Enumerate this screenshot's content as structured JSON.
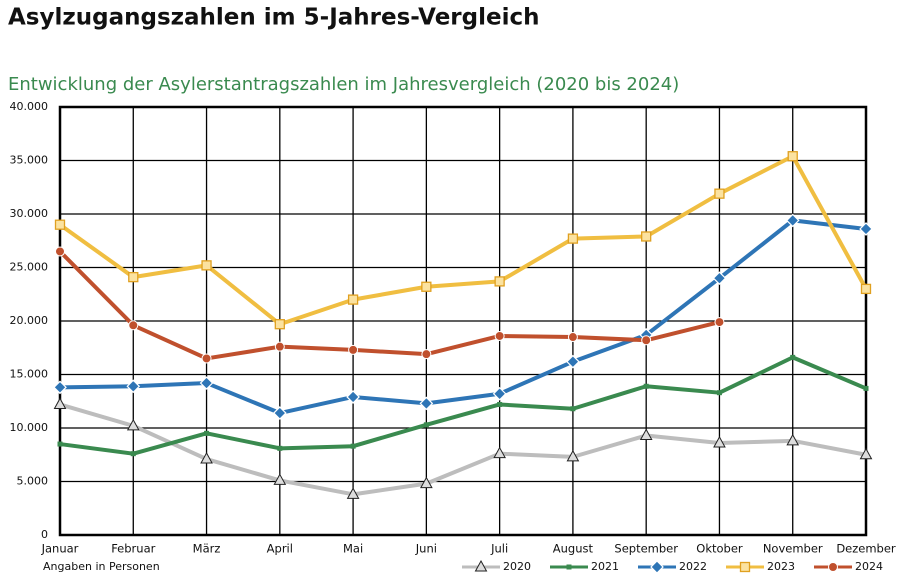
{
  "chart_data": {
    "type": "line",
    "title": "Asylzugangszahlen im 5-Jahres-Vergleich",
    "subtitle": "Entwicklung der Asylerstantragszahlen im Jahresvergleich (2020 bis 2024)",
    "annotation": "Angaben in Personen",
    "categories": [
      "Januar",
      "Februar",
      "März",
      "April",
      "Mai",
      "Juni",
      "Juli",
      "August",
      "September",
      "Oktober",
      "November",
      "Dezember"
    ],
    "series": [
      {
        "name": "2020",
        "color": "#bdbdbd",
        "marker": "triangle",
        "values": [
          12200,
          10200,
          7100,
          5100,
          3800,
          4800,
          7600,
          7300,
          9300,
          8600,
          8800,
          7500
        ]
      },
      {
        "name": "2021",
        "color": "#3a8a4f",
        "marker": "dot",
        "values": [
          8500,
          7600,
          9500,
          8100,
          8300,
          10300,
          12200,
          11800,
          13900,
          13300,
          16600,
          13700
        ]
      },
      {
        "name": "2022",
        "color": "#2e75b6",
        "marker": "diamond",
        "values": [
          13800,
          13900,
          14200,
          11400,
          12900,
          12300,
          13200,
          16200,
          18700,
          24000,
          29400,
          28600
        ]
      },
      {
        "name": "2023",
        "color": "#f0be41",
        "marker": "square",
        "values": [
          29000,
          24100,
          25200,
          19700,
          22000,
          23200,
          23700,
          27700,
          27900,
          31900,
          35400,
          23000
        ]
      },
      {
        "name": "2024",
        "color": "#c0502d",
        "marker": "circle",
        "values": [
          26500,
          19600,
          16500,
          17600,
          17300,
          16900,
          18600,
          18500,
          18200,
          19900,
          null,
          null
        ]
      }
    ],
    "ylim": [
      0,
      40000
    ],
    "yticks": [
      0,
      {
        "value": 5000,
        "label": "5.000"
      },
      {
        "value": 10000,
        "label": "10.000"
      },
      {
        "value": 15000,
        "label": "15.000"
      },
      {
        "value": 20000,
        "label": "20.000"
      },
      {
        "value": 25000,
        "label": "25.000"
      },
      {
        "value": 30000,
        "label": "30.000"
      },
      {
        "value": 35000,
        "label": "35.000"
      },
      {
        "value": 40000,
        "label": "40.000"
      }
    ],
    "grid": true,
    "legend": "bottom-right"
  }
}
